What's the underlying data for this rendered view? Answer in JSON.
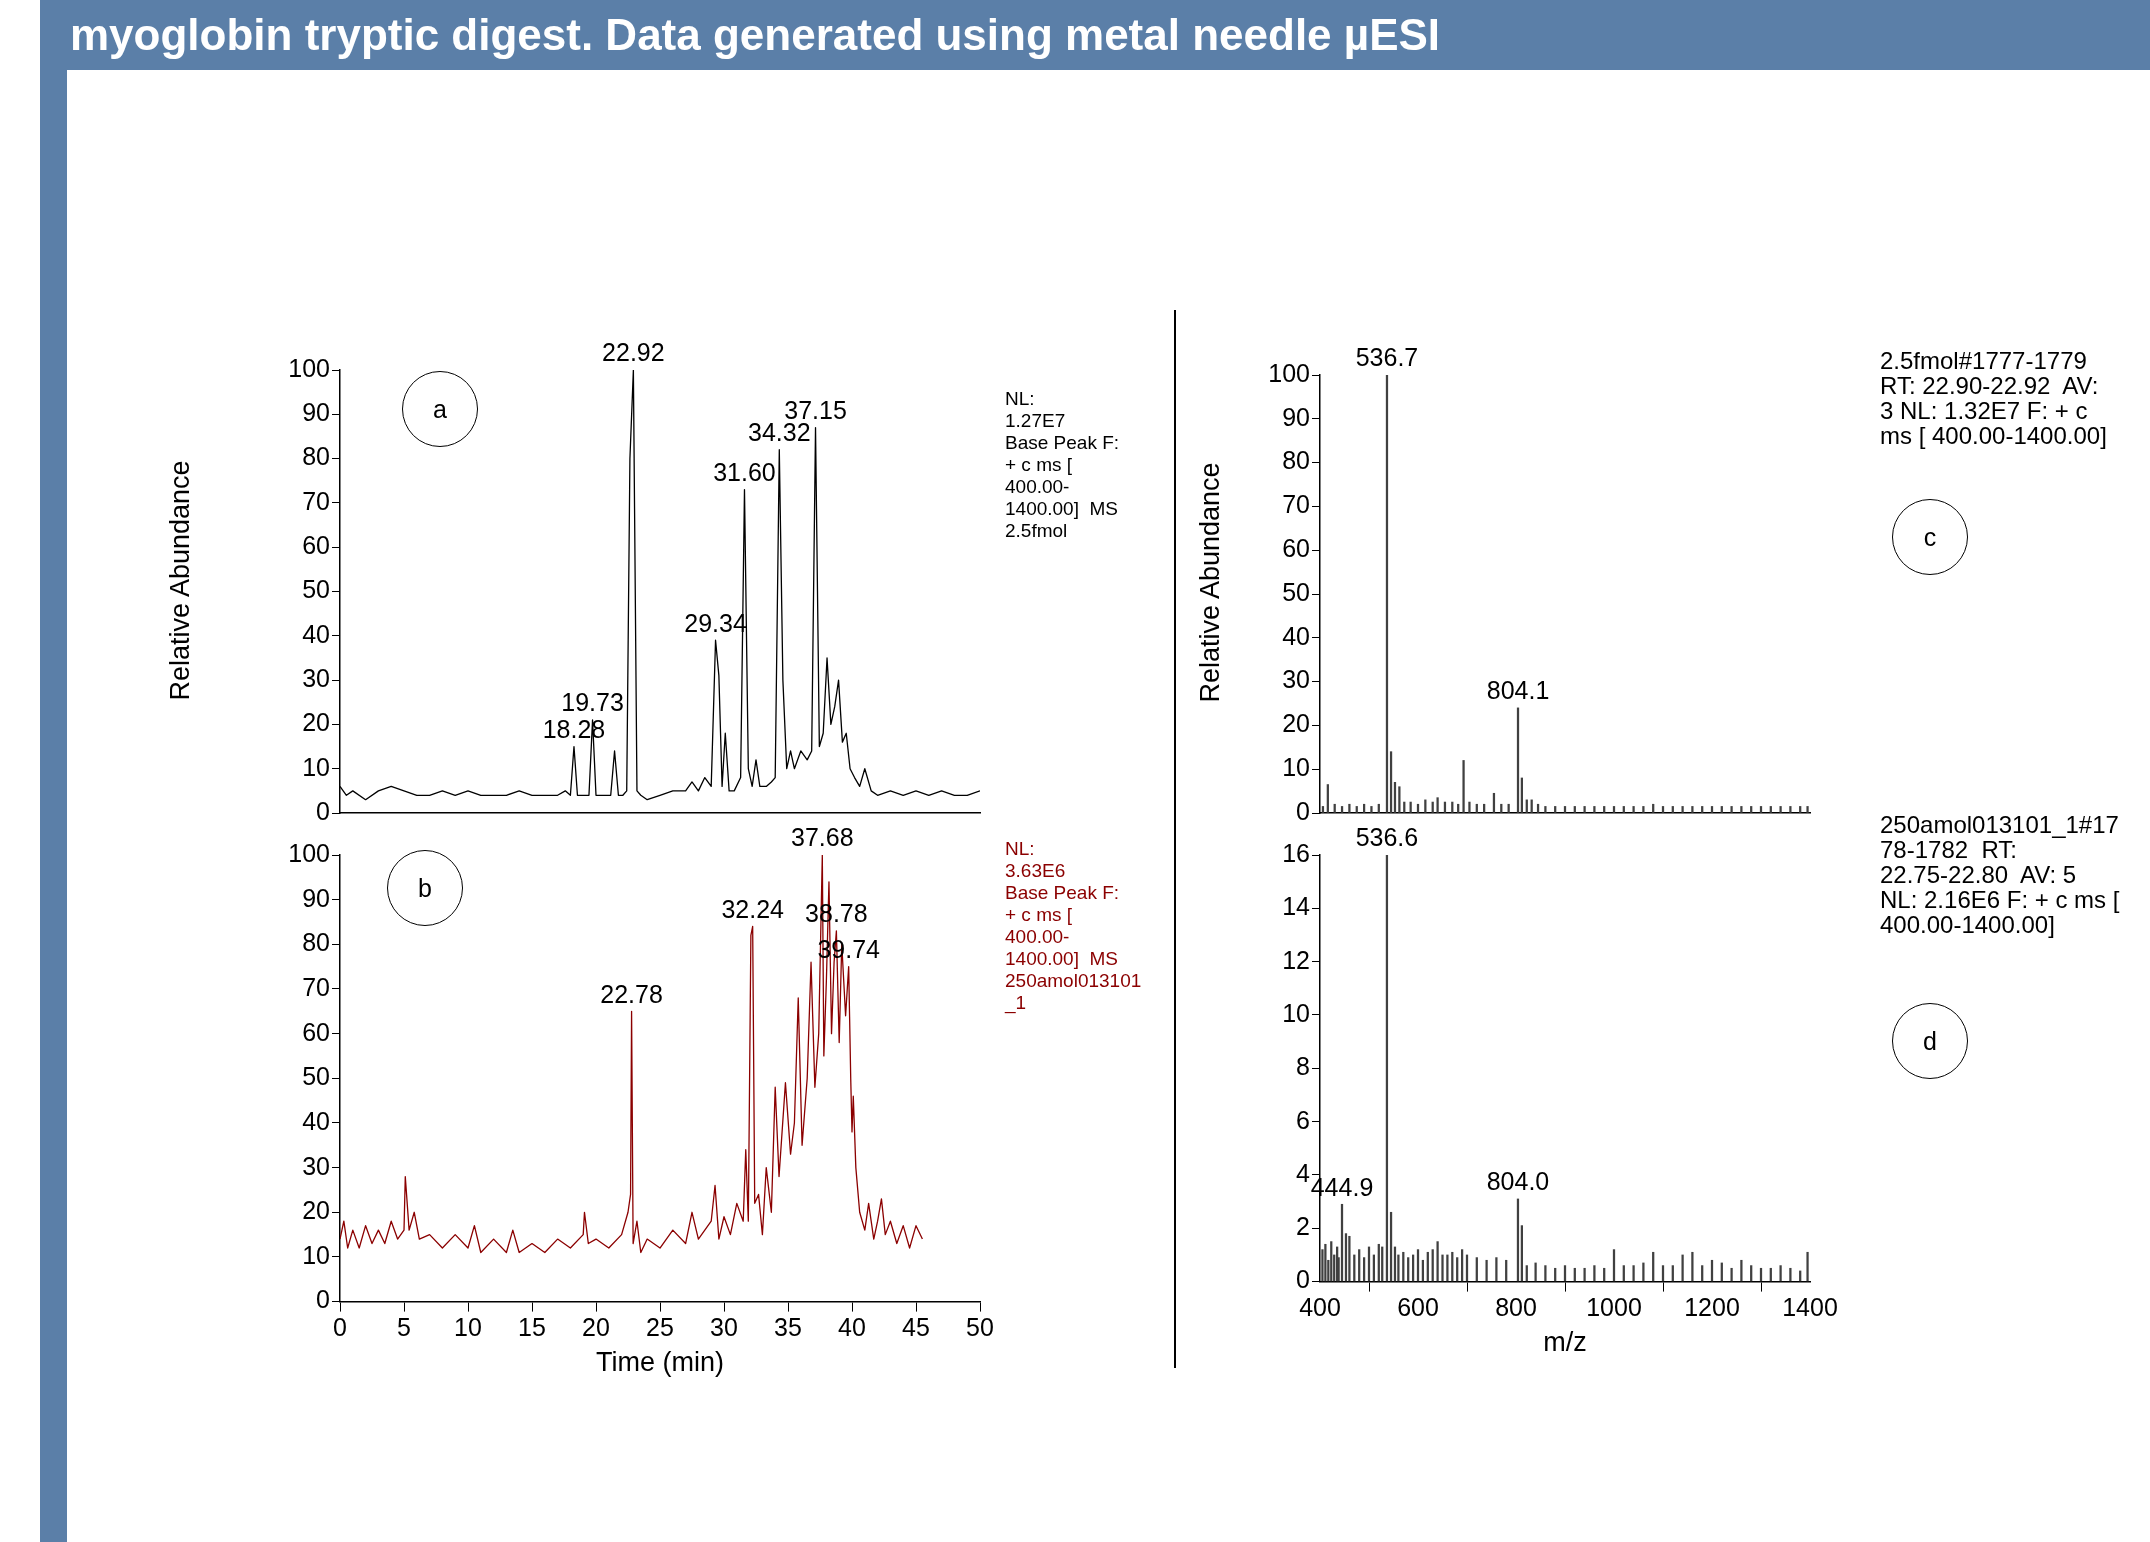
{
  "chart_data": [
    {
      "type": "line",
      "title": "myoglobin tryptic digest. Data generated using metal needle µESI",
      "ylabel": "Relative Abundance",
      "xlim": [
        0,
        50
      ],
      "ylim": [
        0,
        100
      ],
      "yticks": [
        0,
        10,
        20,
        30,
        40,
        50,
        60,
        70,
        80,
        90,
        100
      ],
      "tick_labels": "y",
      "grid": false,
      "annotations": [
        "a",
        "NL:\n1.27E7\nBase Peak F:\n+ c ms [\n400.00-\n1400.00]  MS\n2.5fmol",
        {
          "text": "18.28",
          "x": 18.28,
          "y": 15
        },
        {
          "text": "19.73",
          "x": 19.73,
          "y": 21
        },
        {
          "text": "22.92",
          "x": 22.92,
          "y": 100
        },
        {
          "text": "29.34",
          "x": 29.34,
          "y": 39
        },
        {
          "text": "31.60",
          "x": 31.6,
          "y": 73
        },
        {
          "text": "34.32",
          "x": 34.32,
          "y": 82
        },
        {
          "text": "37.15",
          "x": 37.15,
          "y": 87
        }
      ],
      "series": [
        {
          "color": "#000000",
          "x": [
            0,
            0.5,
            1,
            2,
            3,
            4,
            5,
            6,
            7,
            8,
            9,
            10,
            11,
            12,
            13,
            14,
            15,
            16,
            17,
            17.6,
            18,
            18.28,
            18.55,
            19.1,
            19.45,
            19.73,
            20,
            20.6,
            21.15,
            21.45,
            21.75,
            22.1,
            22.4,
            22.65,
            22.92,
            23.2,
            23.5,
            24,
            25,
            26,
            27,
            27.5,
            28,
            28.5,
            29,
            29.34,
            29.6,
            29.85,
            30.1,
            30.4,
            30.8,
            31.3,
            31.6,
            31.9,
            32.2,
            32.5,
            32.8,
            33.3,
            33.7,
            34,
            34.32,
            34.6,
            34.9,
            35.2,
            35.5,
            36,
            36.5,
            36.85,
            37.15,
            37.45,
            37.75,
            38.05,
            38.35,
            38.65,
            38.95,
            39.25,
            39.55,
            39.85,
            40.2,
            40.6,
            41,
            41.5,
            42,
            43,
            44,
            45,
            46,
            47,
            48,
            49,
            50
          ],
          "values": [
            6,
            4,
            5,
            3,
            5,
            6,
            5,
            4,
            4,
            5,
            4,
            5,
            4,
            4,
            4,
            5,
            4,
            4,
            4,
            5,
            4,
            15,
            4,
            4,
            4,
            21,
            4,
            4,
            4,
            14,
            4,
            4,
            5,
            80,
            100,
            5,
            4,
            3,
            4,
            5,
            5,
            7,
            5,
            8,
            6,
            39,
            31,
            6,
            18,
            5,
            5,
            8,
            73,
            10,
            6,
            12,
            6,
            6,
            7,
            8,
            82,
            30,
            10,
            14,
            10,
            14,
            12,
            14,
            87,
            15,
            18,
            35,
            20,
            24,
            30,
            16,
            18,
            10,
            8,
            6,
            10,
            5,
            4,
            5,
            4,
            5,
            4,
            5,
            4,
            4,
            5
          ]
        }
      ]
    },
    {
      "type": "line",
      "xlabel": "Time (min)",
      "xlim": [
        0,
        50
      ],
      "xticks": [
        0,
        5,
        10,
        15,
        20,
        25,
        30,
        35,
        40,
        45,
        50
      ],
      "ylim": [
        0,
        100
      ],
      "yticks": [
        0,
        10,
        20,
        30,
        40,
        50,
        60,
        70,
        80,
        90,
        100
      ],
      "grid": false,
      "annotations": [
        "b",
        "NL:\n3.63E6\nBase Peak F:\n+ c ms [\n400.00-\n1400.00]  MS\n250amol013101\n_1",
        {
          "text": "22.78",
          "x": 22.78,
          "y": 65
        },
        {
          "text": "32.24",
          "x": 32.24,
          "y": 84
        },
        {
          "text": "37.68",
          "x": 37.68,
          "y": 100
        },
        {
          "text": "38.78",
          "x": 38.78,
          "y": 83
        },
        {
          "text": "39.74",
          "x": 39.74,
          "y": 75
        }
      ],
      "series": [
        {
          "color": "#8b0000",
          "x": [
            0,
            0.3,
            0.6,
            1,
            1.5,
            2,
            2.5,
            3,
            3.5,
            4,
            4.5,
            5,
            5.1,
            5.4,
            5.8,
            6.2,
            7,
            8,
            9,
            10,
            10.5,
            11,
            12,
            13,
            13.5,
            14,
            15,
            16,
            17,
            18,
            19,
            19.1,
            19.4,
            20,
            21,
            22,
            22.5,
            22.7,
            22.78,
            22.9,
            23.2,
            23.5,
            24,
            25,
            26,
            27,
            27.5,
            28,
            29,
            29.3,
            29.6,
            30,
            30.5,
            31,
            31.5,
            31.7,
            31.9,
            32.1,
            32.24,
            32.4,
            32.7,
            33,
            33.3,
            33.7,
            34,
            34.3,
            34.8,
            35.2,
            35.5,
            35.8,
            36.1,
            36.5,
            36.8,
            37.1,
            37.4,
            37.68,
            37.8,
            38,
            38.2,
            38.4,
            38.6,
            38.78,
            39,
            39.2,
            39.5,
            39.74,
            39.9,
            40,
            40.1,
            40.3,
            40.6,
            41,
            41.3,
            41.7,
            42,
            42.3,
            42.6,
            43,
            43.5,
            44,
            44.5,
            45,
            45.5
          ],
          "values": [
            14,
            18,
            12,
            16,
            12,
            17,
            13,
            16,
            13,
            18,
            14,
            16,
            28,
            16,
            20,
            14,
            15,
            12,
            15,
            12,
            17,
            11,
            14,
            11,
            16,
            11,
            13,
            11,
            14,
            12,
            15,
            20,
            13,
            14,
            12,
            15,
            20,
            24,
            65,
            13,
            18,
            11,
            14,
            12,
            16,
            13,
            20,
            14,
            18,
            26,
            14,
            19,
            15,
            22,
            18,
            34,
            18,
            82,
            84,
            22,
            24,
            15,
            30,
            20,
            48,
            28,
            49,
            33,
            40,
            68,
            35,
            50,
            76,
            48,
            60,
            100,
            55,
            72,
            94,
            60,
            76,
            83,
            58,
            80,
            64,
            75,
            50,
            38,
            46,
            30,
            20,
            16,
            22,
            14,
            18,
            23,
            15,
            18,
            13,
            17,
            12,
            17,
            14
          ]
        }
      ]
    },
    {
      "type": "bar",
      "ylabel": "Relative Abundance",
      "xlim": [
        400,
        1400
      ],
      "ylim": [
        0,
        100
      ],
      "yticks": [
        0,
        10,
        20,
        30,
        40,
        50,
        60,
        70,
        80,
        90,
        100
      ],
      "tick_labels": "y",
      "grid": false,
      "annotations": [
        "c",
        "2.5fmol#1777-1779\nRT: 22.90-22.92  AV:\n3 NL: 1.32E7 F: + c\nms [ 400.00-1400.00]",
        {
          "text": "536.7",
          "x": 536.7,
          "y": 100
        },
        {
          "text": "804.1",
          "x": 804.1,
          "y": 24
        }
      ],
      "series": [
        {
          "color": "#404040",
          "x": [
            406,
            416,
            430,
            445,
            460,
            475,
            490,
            505,
            520,
            536.7,
            545,
            553,
            562,
            572,
            585,
            600,
            615,
            630,
            640,
            655,
            670,
            682,
            693,
            705,
            720,
            735,
            755,
            770,
            785,
            804.1,
            812,
            822,
            832,
            845,
            860,
            880,
            900,
            920,
            940,
            960,
            980,
            1000,
            1020,
            1040,
            1060,
            1080,
            1100,
            1120,
            1140,
            1160,
            1180,
            1200,
            1220,
            1240,
            1260,
            1280,
            1300,
            1320,
            1340,
            1360,
            1380,
            1395
          ],
          "values": [
            1.5,
            6.5,
            2,
            1.5,
            2,
            1.5,
            2,
            1.5,
            2,
            100,
            14,
            7,
            6,
            2.5,
            2.5,
            2,
            3,
            2.5,
            3.5,
            2.5,
            2.5,
            2,
            12,
            2.5,
            2,
            2,
            4.5,
            2,
            2,
            24,
            8,
            3,
            3,
            2,
            1.5,
            1.5,
            1.5,
            1.5,
            1.5,
            1.5,
            1.5,
            1.5,
            1.5,
            1.5,
            1.5,
            2,
            1.5,
            1.5,
            1.5,
            1.5,
            1.5,
            1.5,
            1.5,
            1.5,
            1.5,
            1.5,
            1.5,
            1.5,
            1.5,
            1.5,
            1.5,
            1.5
          ]
        }
      ]
    },
    {
      "type": "bar",
      "xlabel": "m/z",
      "xlim": [
        400,
        1400
      ],
      "xticks": [
        400,
        600,
        800,
        1000,
        1200,
        1400
      ],
      "ylim": [
        0,
        16
      ],
      "yticks": [
        0,
        2,
        4,
        6,
        8,
        10,
        12,
        14,
        16
      ],
      "grid": false,
      "annotations": [
        "d",
        "250amol013101_1#17\n78-1782  RT:\n22.75-22.80  AV: 5\nNL: 2.16E6 F: + c ms [\n400.00-1400.00]",
        {
          "text": "536.6",
          "x": 536.6,
          "y": 16
        },
        {
          "text": "444.9",
          "x": 444.9,
          "y": 2.9
        },
        {
          "text": "804.0",
          "x": 804,
          "y": 3.1
        }
      ],
      "series": [
        {
          "color": "#404040",
          "x": [
            405,
            411,
            417,
            423,
            429,
            435,
            438,
            444.9,
            453,
            460,
            470,
            480,
            490,
            500,
            510,
            520,
            527,
            536.6,
            545,
            553,
            560,
            570,
            580,
            590,
            600,
            610,
            620,
            630,
            640,
            650,
            660,
            670,
            680,
            690,
            700,
            720,
            740,
            760,
            780,
            804,
            812,
            822,
            840,
            860,
            880,
            900,
            920,
            940,
            960,
            980,
            1000,
            1020,
            1040,
            1060,
            1080,
            1100,
            1120,
            1140,
            1160,
            1180,
            1200,
            1220,
            1240,
            1260,
            1280,
            1300,
            1320,
            1340,
            1360,
            1380,
            1395
          ],
          "values": [
            1.2,
            1.4,
            0.8,
            1.5,
            1,
            1.3,
            0.9,
            2.9,
            1.8,
            1.7,
            1,
            1.2,
            0.9,
            1.3,
            1,
            1.4,
            1.3,
            16,
            2.6,
            1.3,
            1,
            1.1,
            0.9,
            1,
            1.2,
            0.8,
            1.1,
            1.2,
            1.5,
            1,
            1,
            1.1,
            0.9,
            1.2,
            1,
            0.9,
            0.8,
            0.9,
            0.8,
            3.1,
            2.1,
            0.6,
            0.7,
            0.6,
            0.5,
            0.6,
            0.5,
            0.5,
            0.6,
            0.5,
            1.2,
            0.6,
            0.6,
            0.7,
            1.1,
            0.6,
            0.6,
            1,
            1.1,
            0.6,
            0.8,
            0.7,
            0.5,
            0.8,
            0.6,
            0.5,
            0.5,
            0.6,
            0.5,
            0.4,
            1.1
          ]
        }
      ]
    }
  ]
}
